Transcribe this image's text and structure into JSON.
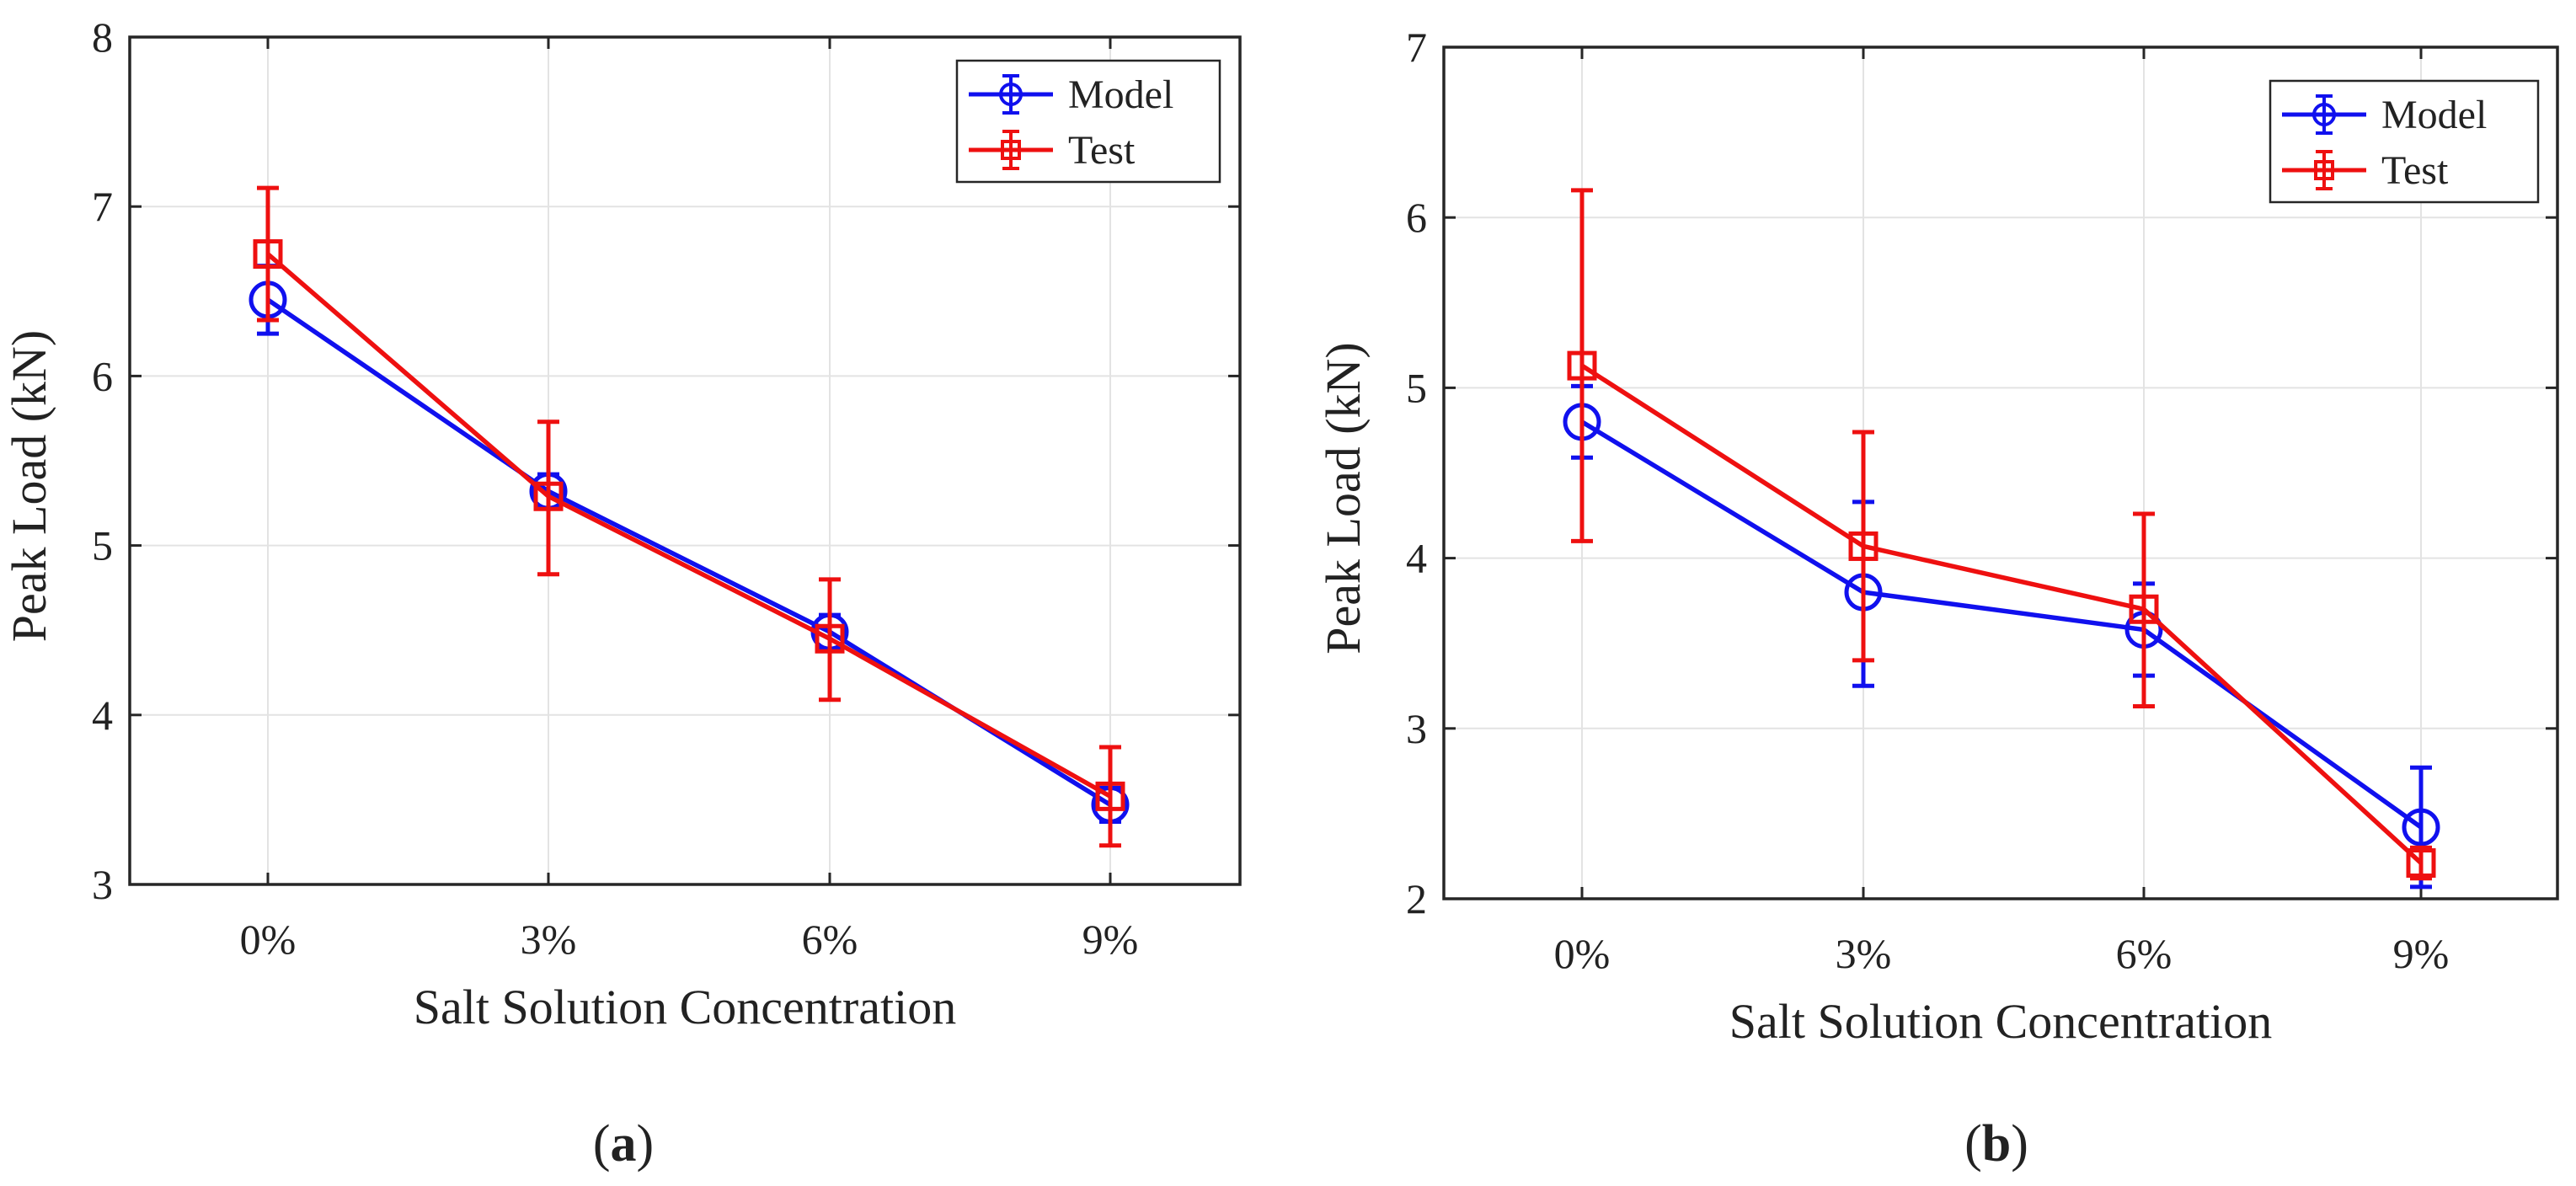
{
  "chart_data": [
    {
      "type": "line",
      "panel_label": "a",
      "xlabel": "Salt Solution Concentration",
      "ylabel": "Peak Load (kN)",
      "categories": [
        "0%",
        "3%",
        "6%",
        "9%"
      ],
      "ylim": [
        3,
        8
      ],
      "yticks": [
        3,
        4,
        5,
        6,
        7,
        8
      ],
      "grid": true,
      "legend": "top-right",
      "series": [
        {
          "name": "Model",
          "color": "#1010ee",
          "marker": "circle",
          "values": [
            6.45,
            5.32,
            4.49,
            3.47
          ],
          "err_low": [
            6.25,
            5.22,
            4.39,
            3.37
          ],
          "err_high": [
            6.65,
            5.42,
            4.59,
            3.57
          ]
        },
        {
          "name": "Test",
          "color": "#ee1010",
          "marker": "square",
          "values": [
            6.72,
            5.29,
            4.45,
            3.52
          ],
          "err_low": [
            6.33,
            4.83,
            4.09,
            3.23
          ],
          "err_high": [
            7.11,
            5.73,
            4.8,
            3.81
          ]
        }
      ]
    },
    {
      "type": "line",
      "panel_label": "b",
      "xlabel": "Salt Solution Concentration",
      "ylabel": "Peak Load (kN)",
      "categories": [
        "0%",
        "3%",
        "6%",
        "9%"
      ],
      "ylim": [
        2,
        7
      ],
      "yticks": [
        2,
        3,
        4,
        5,
        6,
        7
      ],
      "grid": true,
      "legend": "top-right",
      "series": [
        {
          "name": "Model",
          "color": "#1010ee",
          "marker": "circle",
          "values": [
            4.8,
            3.8,
            3.58,
            2.42
          ],
          "err_low": [
            4.59,
            3.25,
            3.31,
            2.07
          ],
          "err_high": [
            5.01,
            4.33,
            3.85,
            2.77
          ]
        },
        {
          "name": "Test",
          "color": "#ee1010",
          "marker": "square",
          "values": [
            5.13,
            4.07,
            3.7,
            2.21
          ],
          "err_low": [
            4.1,
            3.4,
            3.13,
            2.12
          ],
          "err_high": [
            6.16,
            4.74,
            4.26,
            2.3
          ]
        }
      ]
    }
  ]
}
